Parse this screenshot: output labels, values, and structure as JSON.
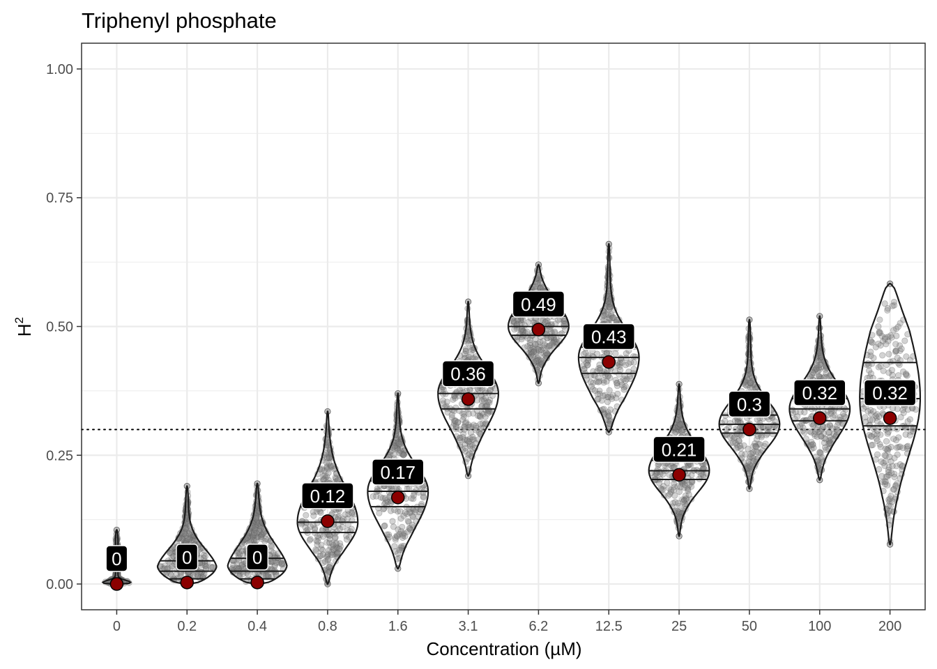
{
  "chart_data": {
    "type": "violin",
    "title": "Triphenyl phosphate",
    "xlabel": "Concentration (µM)",
    "ylabel": "H",
    "ylabel_superscript": "2",
    "categories": [
      "0",
      "0.2",
      "0.4",
      "0.8",
      "1.6",
      "3.1",
      "6.2",
      "12.5",
      "25",
      "50",
      "100",
      "200"
    ],
    "ylim": [
      -0.05,
      1.05
    ],
    "yticks": [
      0.0,
      0.25,
      0.5,
      0.75,
      1.0
    ],
    "ytick_labels": [
      "0.00",
      "0.25",
      "0.50",
      "0.75",
      "1.00"
    ],
    "reference_line": 0.3,
    "point_estimates": [
      0.0,
      0.003,
      0.003,
      0.122,
      0.168,
      0.359,
      0.494,
      0.431,
      0.212,
      0.3,
      0.322,
      0.322
    ],
    "estimate_labels": [
      "0",
      "0",
      "0",
      "0.12",
      "0.17",
      "0.36",
      "0.49",
      "0.43",
      "0.21",
      "0.3",
      "0.32",
      "0.32"
    ],
    "distributions": [
      {
        "min": 0.0,
        "max": 0.105,
        "q1": 0.0,
        "median": 0.0,
        "q3": 0.0
      },
      {
        "min": 0.0,
        "max": 0.19,
        "q1": 0.01,
        "median": 0.025,
        "q3": 0.045
      },
      {
        "min": 0.0,
        "max": 0.195,
        "q1": 0.01,
        "median": 0.025,
        "q3": 0.05
      },
      {
        "min": 0.0,
        "max": 0.335,
        "q1": 0.1,
        "median": 0.12,
        "q3": 0.15
      },
      {
        "min": 0.03,
        "max": 0.37,
        "q1": 0.15,
        "median": 0.18,
        "q3": 0.2
      },
      {
        "min": 0.21,
        "max": 0.548,
        "q1": 0.34,
        "median": 0.37,
        "q3": 0.39
      },
      {
        "min": 0.39,
        "max": 0.62,
        "q1": 0.483,
        "median": 0.5,
        "q3": 0.52
      },
      {
        "min": 0.295,
        "max": 0.66,
        "q1": 0.409,
        "median": 0.44,
        "q3": 0.46
      },
      {
        "min": 0.093,
        "max": 0.388,
        "q1": 0.203,
        "median": 0.22,
        "q3": 0.24
      },
      {
        "min": 0.185,
        "max": 0.513,
        "q1": 0.293,
        "median": 0.31,
        "q3": 0.328
      },
      {
        "min": 0.202,
        "max": 0.52,
        "q1": 0.317,
        "median": 0.34,
        "q3": 0.36
      },
      {
        "min": 0.077,
        "max": 0.583,
        "q1": 0.307,
        "median": 0.36,
        "q3": 0.43
      }
    ],
    "colors": {
      "point": "#8b0000",
      "label_bg": "#000000",
      "label_text": "#ffffff",
      "jitter": "#808080",
      "violin_outline": "#1a1a1a",
      "grid_major": "#ebebeb",
      "panel_border": "#333333"
    },
    "grid": true,
    "legend": "none"
  }
}
